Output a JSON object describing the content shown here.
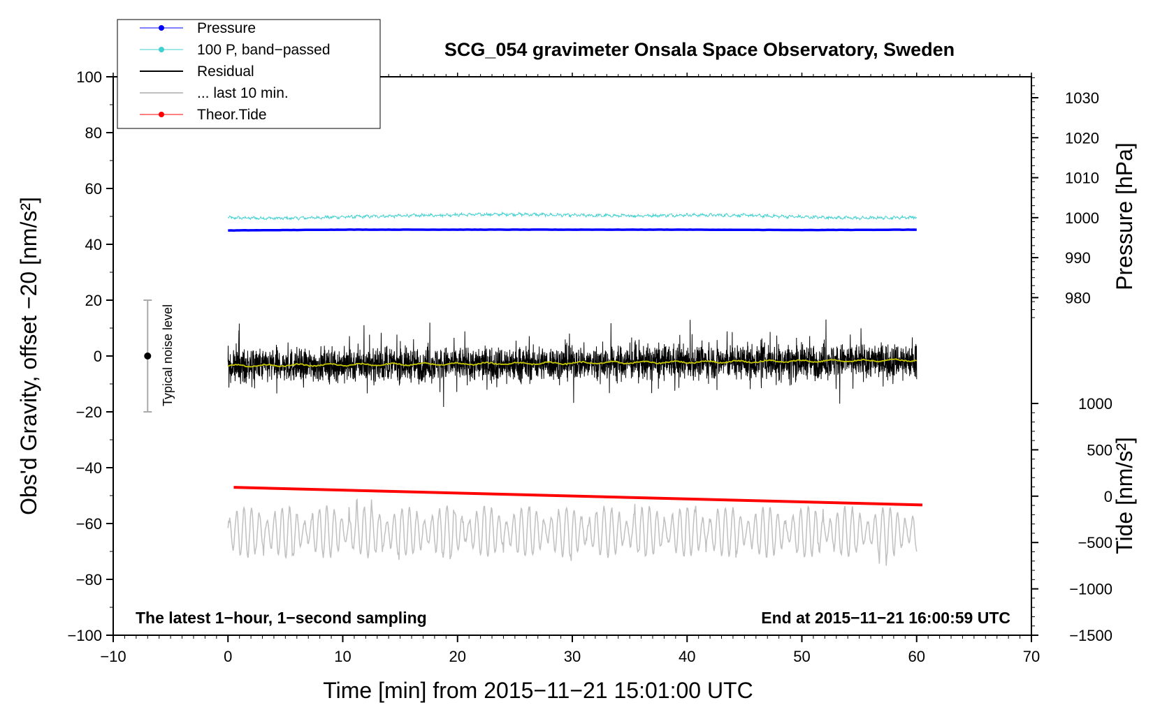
{
  "chart_data": {
    "type": "line",
    "title": "SCG_054 gravimeter Onsala Space Observatory, Sweden",
    "xlabel": "Time [min] from 2015−11−21 15:01:00 UTC",
    "ylabel_left": "Obs'd Gravity, offset −20 [nm/s²]",
    "ylabel_pressure": "Pressure [hPa]",
    "ylabel_tide": "Tide [nm/s²]",
    "xlim": [
      -10,
      70
    ],
    "ylim": [
      -100,
      100
    ],
    "pressure_range": [
      975,
      1035
    ],
    "tide_range": [
      -1500,
      1500
    ],
    "x_ticks": [
      "−10",
      "0",
      "10",
      "20",
      "30",
      "40",
      "50",
      "60",
      "70"
    ],
    "y_ticks": [
      "−100",
      "−80",
      "−60",
      "−40",
      "−20",
      "0",
      "20",
      "40",
      "60",
      "80",
      "100"
    ],
    "pressure_ticks": [
      "980",
      "990",
      "1000",
      "1010",
      "1020",
      "1030"
    ],
    "tide_ticks": [
      "−1500",
      "−1000",
      "−500",
      "0",
      "500",
      "1000"
    ],
    "grid": false,
    "legend_position": "top-left",
    "annotations": {
      "left": "The latest 1−hour, 1−second sampling",
      "right": "End at 2015−11−21 16:00:59 UTC",
      "noise": "Typical noise level"
    },
    "noise_bar": {
      "x": -7,
      "center": 0,
      "low": -20,
      "high": 20
    },
    "series": [
      {
        "name": "Pressure",
        "axis": "pressure",
        "color": "#0000ff",
        "x": [
          0,
          10,
          20,
          30,
          40,
          50,
          60
        ],
        "values": [
          996.8,
          997.0,
          997.0,
          997.0,
          997.0,
          996.9,
          997.0
        ]
      },
      {
        "name": "100 P, band−passed",
        "axis": "left",
        "color": "#40d0d0",
        "x": [
          0,
          5,
          10,
          15,
          20,
          25,
          30,
          35,
          40,
          45,
          50,
          55,
          60
        ],
        "values": [
          49.5,
          49.3,
          49.8,
          50.2,
          50.6,
          50.8,
          50.4,
          50.2,
          50.5,
          50.4,
          49.8,
          49.4,
          49.7
        ]
      },
      {
        "name": "Residual",
        "axis": "left",
        "color": "#000000",
        "x": [
          0,
          60
        ],
        "mean": [
          -3.5,
          -1.5
        ],
        "amplitude_range": [
          -21,
          13.5
        ]
      },
      {
        "name": "... last 10 min.",
        "axis": "left",
        "color": "#c0c0c0",
        "x": [
          0,
          60
        ],
        "mean": [
          -63,
          -63
        ],
        "amplitude_range": [
          -76,
          -48
        ]
      },
      {
        "name": "Theor.Tide",
        "axis": "tide",
        "color": "#ff0000",
        "x": [
          0.5,
          60.5
        ],
        "values": [
          95,
          -95
        ]
      }
    ]
  }
}
